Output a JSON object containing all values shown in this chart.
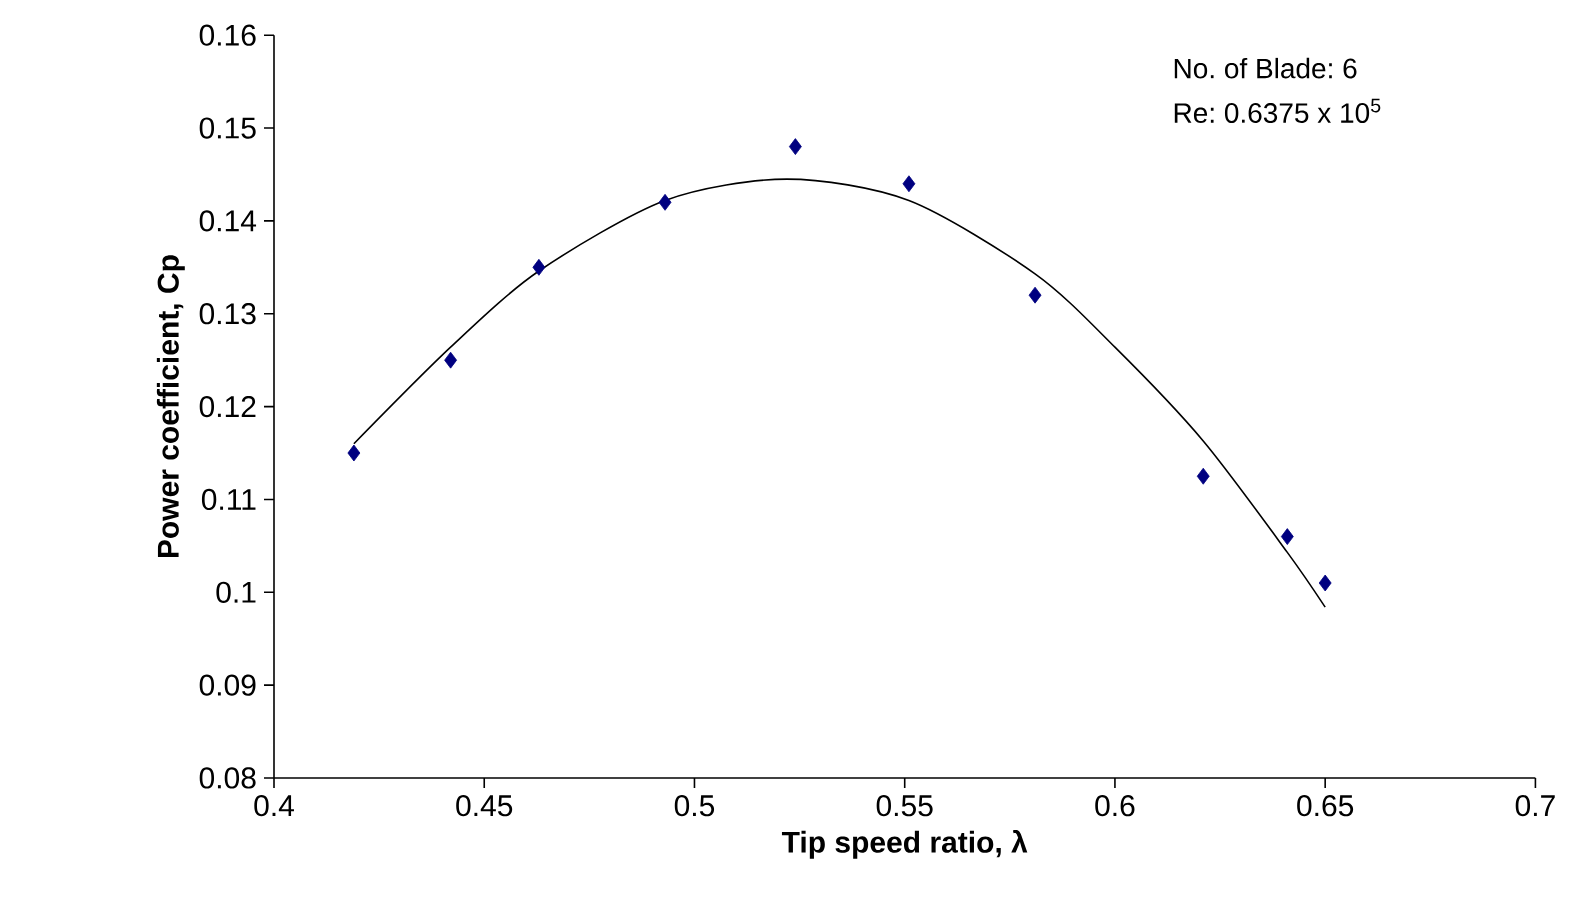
{
  "chart_data": {
    "type": "scatter",
    "xlabel": "Tip speed ratio, λ",
    "ylabel": "Power coefficient, Cp",
    "xlim": [
      0.4,
      0.7
    ],
    "xticks": [
      0.4,
      0.45,
      0.5,
      0.55,
      0.6,
      0.65,
      0.7
    ],
    "ylim": [
      0.08,
      0.16
    ],
    "yticks": [
      0.08,
      0.09,
      0.1,
      0.11,
      0.12,
      0.13,
      0.14,
      0.15,
      0.16
    ],
    "grid": false,
    "marker": "diamond",
    "annotations": [
      "No. of Blade: 6",
      "Re: 0.6375  x 10$^{5}$"
    ],
    "series": [
      {
        "color": "#000080",
        "x": [
          0.419,
          0.442,
          0.463,
          0.493,
          0.524,
          0.551,
          0.581,
          0.621,
          0.641,
          0.65
        ],
        "values": [
          0.115,
          0.125,
          0.135,
          0.142,
          0.148,
          0.144,
          0.132,
          0.1125,
          0.106,
          0.101
        ]
      },
      {
        "type": "line",
        "color": "#000000",
        "marker": "none",
        "line_style": "solid",
        "x": [
          0.419,
          0.442,
          0.463,
          0.493,
          0.522,
          0.551,
          0.581,
          0.6,
          0.621,
          0.641,
          0.65
        ],
        "values": [
          0.116,
          0.1264,
          0.1346,
          0.1422,
          0.1445,
          0.1422,
          0.1343,
          0.1264,
          0.1163,
          0.1043,
          0.0984
        ]
      }
    ]
  }
}
